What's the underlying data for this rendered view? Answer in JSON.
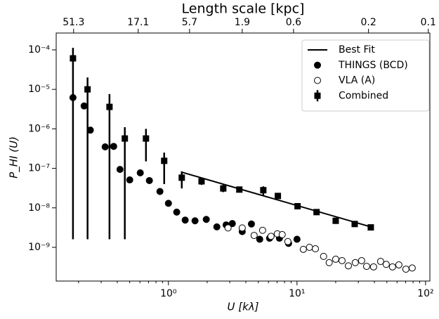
{
  "chart_data": {
    "type": "scatter",
    "title": "Length scale [kpc]",
    "xlabel": "U  [kλ]",
    "ylabel": "P_HI (U)",
    "xscale": "log",
    "yscale": "log",
    "xlim": [
      0.134,
      108
    ],
    "ylim": [
      1.4e-10,
      0.000267
    ],
    "xticks": [
      {
        "value": 1,
        "label": "10⁰"
      },
      {
        "value": 10,
        "label": "10¹"
      },
      {
        "value": 100,
        "label": "10²"
      }
    ],
    "xminorticks": [
      0.2,
      0.3,
      0.4,
      0.5,
      0.6,
      0.7,
      0.8,
      0.9,
      2,
      3,
      4,
      5,
      6,
      7,
      8,
      9,
      20,
      30,
      40,
      50,
      60,
      70,
      80,
      90
    ],
    "yticks": [
      {
        "value": 1e-09,
        "label": "10⁻⁹"
      },
      {
        "value": 1e-08,
        "label": "10⁻⁸"
      },
      {
        "value": 1e-07,
        "label": "10⁻⁷"
      },
      {
        "value": 1e-06,
        "label": "10⁻⁶"
      },
      {
        "value": 1e-05,
        "label": "10⁻⁵"
      },
      {
        "value": 0.0001,
        "label": "10⁻⁴"
      }
    ],
    "x2ticks": [
      {
        "value": 0.183,
        "label": "51.3"
      },
      {
        "value": 0.582,
        "label": "17.1"
      },
      {
        "value": 1.46,
        "label": "5.7"
      },
      {
        "value": 3.75,
        "label": "1.9"
      },
      {
        "value": 9.4,
        "label": "0.6"
      },
      {
        "value": 36,
        "label": "0.2"
      },
      {
        "value": 105,
        "label": "0.1"
      }
    ],
    "legend": "upper right",
    "series": [
      {
        "name": "Best Fit",
        "color": "#000000",
        "marker": "line",
        "x": [
          1.27,
          37.5
        ],
        "values": [
          8e-08,
          3.3e-09
        ]
      },
      {
        "name": "THINGS (BCD)",
        "color": "#000000",
        "marker": "circle",
        "filled": true,
        "x": [
          0.181,
          0.221,
          0.247,
          0.322,
          0.375,
          0.42,
          0.5,
          0.604,
          0.711,
          0.859,
          1.0,
          1.16,
          1.35,
          1.61,
          1.97,
          2.38,
          2.81,
          3.14,
          3.75,
          4.42,
          5.13,
          6.12,
          7.3,
          8.6,
          10.0
        ],
        "values": [
          6.2e-06,
          3.8e-06,
          9.3e-07,
          3.5e-07,
          3.6e-07,
          9.4e-08,
          5.1e-08,
          7.7e-08,
          4.9e-08,
          2.6e-08,
          1.3e-08,
          7.8e-09,
          4.9e-09,
          4.7e-09,
          5.1e-09,
          3.3e-09,
          3.7e-09,
          4e-09,
          2.5e-09,
          3.9e-09,
          1.6e-09,
          1.7e-09,
          1.7e-09,
          1.26e-09,
          1.6e-09
        ]
      },
      {
        "name": "VLA (A)",
        "color": "#000000",
        "marker": "circle",
        "filled": false,
        "x": [
          2.91,
          3.75,
          4.64,
          5.4,
          6.28,
          7.03,
          7.67,
          8.49,
          11.2,
          12.5,
          13.9,
          16.1,
          17.8,
          20.0,
          22.4,
          25.1,
          28.4,
          31.8,
          34.8,
          39.4,
          44.7,
          49.4,
          55.3,
          62.0,
          70.3,
          78.7
        ],
        "values": [
          3.1e-09,
          3.1e-09,
          2e-09,
          2.7e-09,
          1.9e-09,
          2.2e-09,
          2.1e-09,
          1.4e-09,
          8.9e-10,
          1e-09,
          9.2e-10,
          5.9e-10,
          4.1e-10,
          5e-10,
          4.6e-10,
          3.4e-10,
          4.1e-10,
          4.6e-10,
          3.3e-10,
          3.2e-10,
          4.4e-10,
          3.7e-10,
          3.2e-10,
          3.6e-10,
          2.8e-10,
          3e-10
        ]
      },
      {
        "name": "Combined",
        "color": "#000000",
        "marker": "square",
        "filled": true,
        "x": [
          0.181,
          0.235,
          0.348,
          0.458,
          0.669,
          0.927,
          1.27,
          1.81,
          2.67,
          3.56,
          5.47,
          7.1,
          10.1,
          14.2,
          20.0,
          28.1,
          37.5
        ],
        "values": [
          6.1e-05,
          1e-05,
          3.6e-06,
          5.7e-07,
          5.7e-07,
          1.55e-07,
          5.8e-08,
          4.7e-08,
          3.1e-08,
          2.9e-08,
          2.8e-08,
          2e-08,
          1.1e-08,
          7.8e-09,
          4.7e-09,
          3.9e-09,
          3.2e-09
        ],
        "lower": [
          1.6e-09,
          1.6e-09,
          1.6e-09,
          1.6e-09,
          1.5e-07,
          4e-08,
          3.1e-08,
          3.8e-08,
          2.5e-08,
          2.5e-08,
          2.1e-08,
          1.7e-08,
          9.5e-09,
          6.8e-09,
          4.1e-09,
          3.4e-09,
          2.8e-09
        ],
        "upper": [
          0.000113,
          2e-05,
          7.6e-06,
          1.1e-06,
          1e-06,
          2.5e-07,
          8.4e-08,
          5.7e-08,
          3.8e-08,
          3.3e-08,
          3.5e-08,
          2.3e-08,
          1.3e-08,
          9e-09,
          5.4e-09,
          4.4e-09,
          3.6e-09
        ]
      }
    ]
  }
}
